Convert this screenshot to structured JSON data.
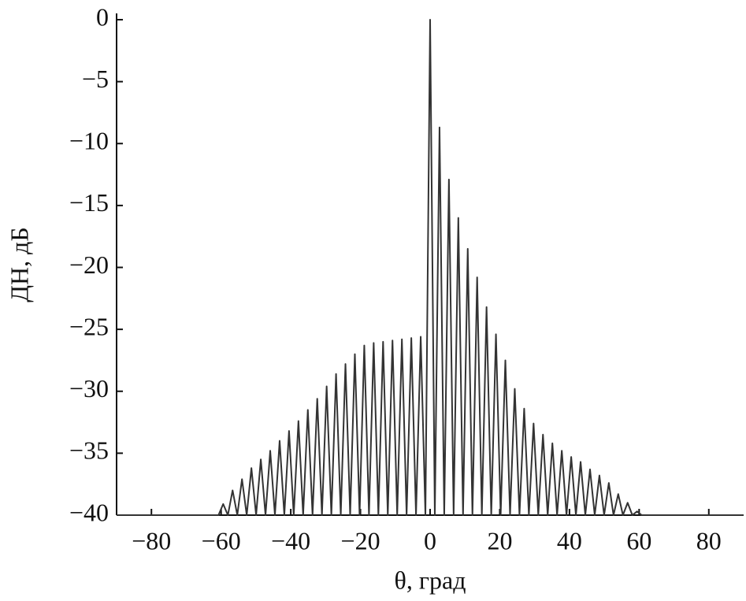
{
  "chart_data": {
    "type": "line",
    "xlabel": "θ, град",
    "ylabel": "ДН, дБ",
    "xlim": [
      -90,
      90
    ],
    "ylim": [
      -40,
      0
    ],
    "xticks": [
      {
        "value": -80,
        "label": "−80"
      },
      {
        "value": -60,
        "label": "−60"
      },
      {
        "value": -40,
        "label": "−40"
      },
      {
        "value": -20,
        "label": "−20"
      },
      0,
      20,
      40,
      60,
      80
    ],
    "yticks": [
      0,
      {
        "value": -5,
        "label": "−5"
      },
      {
        "value": -10,
        "label": "−10"
      },
      {
        "value": -15,
        "label": "−15"
      },
      {
        "value": -20,
        "label": "−20"
      },
      {
        "value": -25,
        "label": "−25"
      },
      {
        "value": -30,
        "label": "−30"
      },
      {
        "value": -35,
        "label": "−35"
      },
      {
        "value": -40,
        "label": "−40"
      }
    ],
    "grid": false,
    "series": [
      {
        "color": "#333333",
        "x": [
          -90,
          -60.75,
          -59.4,
          -58.05,
          -56.7,
          -55.35,
          -54,
          -52.65,
          -51.3,
          -49.95,
          -48.6,
          -47.25,
          -45.9,
          -44.55,
          -43.2,
          -41.85,
          -40.5,
          -39.15,
          -37.8,
          -36.45,
          -35.1,
          -33.75,
          -32.4,
          -31.05,
          -29.7,
          -28.35,
          -27,
          -25.65,
          -24.3,
          -22.95,
          -21.6,
          -20.25,
          -18.9,
          -17.55,
          -16.2,
          -14.85,
          -13.5,
          -12.15,
          -10.8,
          -9.45,
          -8.1,
          -6.75,
          -5.4,
          -4.05,
          -2.7,
          -1.35,
          0,
          1.35,
          2.7,
          4.05,
          5.4,
          6.75,
          8.1,
          9.45,
          10.8,
          12.15,
          13.5,
          14.85,
          16.2,
          17.55,
          18.9,
          20.25,
          21.6,
          22.95,
          24.3,
          25.65,
          27,
          28.35,
          29.7,
          31.05,
          32.4,
          33.75,
          35.1,
          36.45,
          37.8,
          39.15,
          40.5,
          41.85,
          43.2,
          44.55,
          45.9,
          47.25,
          48.6,
          49.95,
          51.3,
          52.65,
          54,
          55.35,
          56.7,
          58.05,
          59.4,
          60.75,
          90
        ],
        "values": [
          -40,
          -40,
          -39.1,
          -40,
          -38,
          -40,
          -37.1,
          -40,
          -36.2,
          -40,
          -35.5,
          -40,
          -34.8,
          -40,
          -34,
          -40,
          -33.2,
          -40,
          -32.4,
          -40,
          -31.5,
          -40,
          -30.6,
          -40,
          -29.6,
          -40,
          -28.6,
          -40,
          -27.8,
          -40,
          -27,
          -40,
          -26.3,
          -40,
          -26.1,
          -40,
          -26,
          -40,
          -25.9,
          -40,
          -25.8,
          -40,
          -25.7,
          -40,
          -25.6,
          -40,
          0,
          -40,
          -8.7,
          -40,
          -12.9,
          -40,
          -16,
          -40,
          -18.5,
          -40,
          -20.8,
          -40,
          -23.2,
          -40,
          -25.4,
          -40,
          -27.5,
          -40,
          -29.8,
          -40,
          -31.4,
          -40,
          -32.6,
          -40,
          -33.5,
          -40,
          -34.2,
          -40,
          -34.8,
          -40,
          -35.3,
          -40,
          -35.7,
          -40,
          -36.3,
          -40,
          -36.8,
          -40,
          -37.4,
          -40,
          -38.3,
          -40,
          -39,
          -40,
          -39.7,
          -40,
          -40
        ]
      }
    ]
  }
}
